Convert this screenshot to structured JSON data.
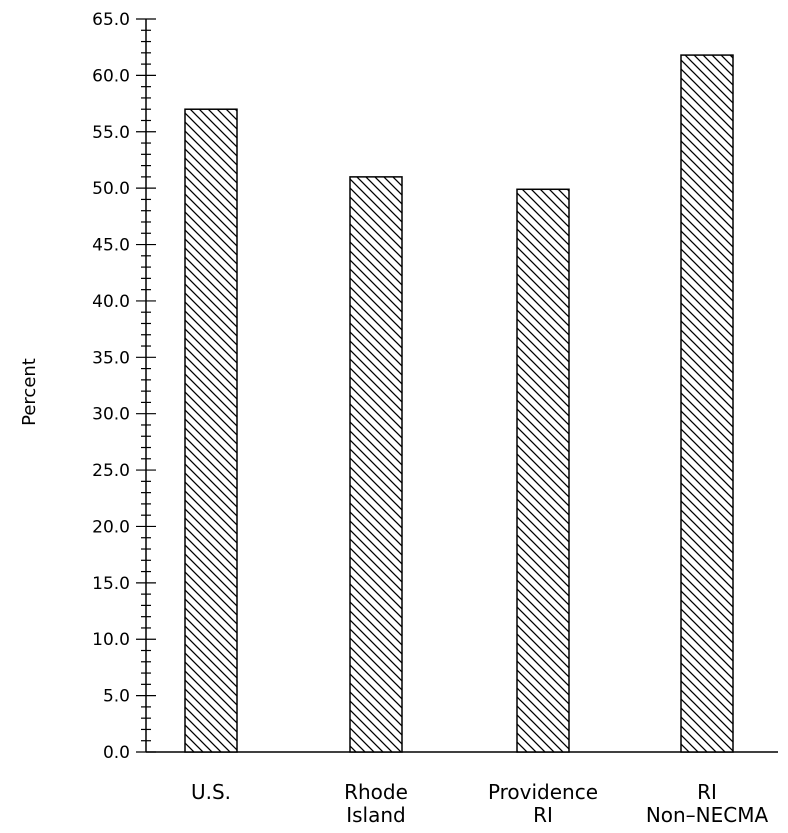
{
  "chart_data": {
    "type": "bar",
    "title": "",
    "xlabel": "",
    "ylabel": "Percent",
    "ylim": [
      0,
      65
    ],
    "major_tick_step": 5,
    "minor_tick_step": 1,
    "tick_labels": [
      "0.0",
      "5.0",
      "10.0",
      "15.0",
      "20.0",
      "25.0",
      "30.0",
      "35.0",
      "40.0",
      "45.0",
      "50.0",
      "55.0",
      "60.0",
      "65.0"
    ],
    "categories": [
      {
        "lines": [
          "U.S."
        ]
      },
      {
        "lines": [
          "Rhode",
          "Island"
        ]
      },
      {
        "lines": [
          "Providence",
          "RI"
        ]
      },
      {
        "lines": [
          "RI",
          "Non–NECMA"
        ]
      }
    ],
    "values": [
      57.0,
      51.0,
      49.9,
      61.8
    ],
    "bar_fill": "diagonal-hatch",
    "bar_stroke": "#000000",
    "grid": false,
    "legend": "none"
  }
}
